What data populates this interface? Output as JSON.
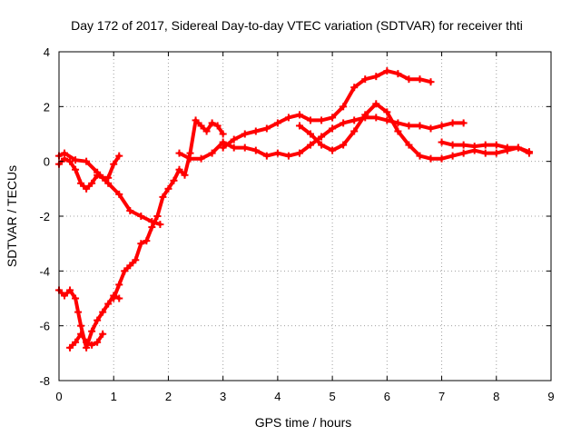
{
  "chart_data": {
    "type": "scatter",
    "title": "Day 172 of 2017, Sidereal Day-to-day VTEC variation (SDTVAR) for receiver thti",
    "xlabel": "GPS time / hours",
    "ylabel": "SDTVAR / TECUs",
    "xlim": [
      0,
      9
    ],
    "ylim": [
      -8,
      4
    ],
    "x_ticks": [
      "0",
      "1",
      "2",
      "3",
      "4",
      "5",
      "6",
      "7",
      "8",
      "9"
    ],
    "y_ticks": [
      "-8",
      "-6",
      "-4",
      "-2",
      "0",
      "2",
      "4"
    ],
    "grid": true,
    "marker": "plus",
    "color": "#ff0000",
    "series": [
      {
        "x": [
          0.0,
          0.1,
          0.2,
          0.3,
          0.4,
          0.5,
          0.6,
          0.7,
          0.8,
          0.9,
          1.0,
          1.1
        ],
        "y": [
          -0.1,
          0.1,
          0.0,
          -0.3,
          -0.8,
          -1.0,
          -0.8,
          -0.5,
          -0.6,
          -0.6,
          -0.1,
          0.2
        ]
      },
      {
        "x": [
          0.0,
          0.1,
          0.3,
          0.5,
          0.7,
          0.9,
          1.1,
          1.3,
          1.5,
          1.7,
          1.85
        ],
        "y": [
          0.2,
          0.3,
          0.05,
          0.0,
          -0.4,
          -0.8,
          -1.2,
          -1.8,
          -2.0,
          -2.2,
          -2.3
        ]
      },
      {
        "x": [
          0.0,
          0.1,
          0.2,
          0.3,
          0.35,
          0.4,
          0.5,
          0.6,
          0.7,
          0.8,
          0.9,
          1.0,
          1.1
        ],
        "y": [
          -4.7,
          -4.9,
          -4.7,
          -5.0,
          -5.5,
          -6.0,
          -6.8,
          -6.2,
          -5.8,
          -5.5,
          -5.2,
          -4.9,
          -5.0
        ]
      },
      {
        "x": [
          0.2,
          0.3,
          0.4,
          0.5,
          0.6,
          0.7,
          0.8
        ],
        "y": [
          -6.8,
          -6.6,
          -6.3,
          -6.6,
          -6.7,
          -6.6,
          -6.3
        ]
      },
      {
        "x": [
          1.0,
          1.1,
          1.2,
          1.3,
          1.4,
          1.5,
          1.6,
          1.7,
          1.8,
          1.9,
          2.0,
          2.1,
          2.2,
          2.3,
          2.4,
          2.5,
          2.6,
          2.7,
          2.8,
          2.9,
          3.0
        ],
        "y": [
          -5.0,
          -4.5,
          -4.0,
          -3.8,
          -3.6,
          -3.0,
          -2.9,
          -2.4,
          -2.0,
          -1.3,
          -1.0,
          -0.7,
          -0.3,
          -0.5,
          0.3,
          1.5,
          1.3,
          1.1,
          1.4,
          1.3,
          1.0
        ]
      },
      {
        "x": [
          2.2,
          2.4,
          2.6,
          2.8,
          3.0,
          3.2,
          3.4,
          3.6,
          3.8,
          4.0,
          4.2,
          4.4,
          4.6,
          4.8,
          5.0,
          5.2,
          5.4,
          5.6,
          5.8,
          6.0,
          6.2,
          6.4,
          6.6,
          6.8,
          7.0,
          7.2,
          7.4
        ],
        "y": [
          0.3,
          0.1,
          0.1,
          0.3,
          0.7,
          0.5,
          0.5,
          0.4,
          0.2,
          0.3,
          0.2,
          0.3,
          0.6,
          0.9,
          1.2,
          1.4,
          1.5,
          1.6,
          1.6,
          1.5,
          1.4,
          1.3,
          1.3,
          1.2,
          1.3,
          1.4,
          1.4
        ]
      },
      {
        "x": [
          3.0,
          3.2,
          3.4,
          3.6,
          3.8,
          4.0,
          4.2,
          4.4,
          4.6,
          4.8,
          5.0,
          5.2,
          5.4,
          5.6,
          5.8,
          6.0,
          6.2,
          6.4,
          6.6,
          6.8
        ],
        "y": [
          0.5,
          0.8,
          1.0,
          1.1,
          1.2,
          1.4,
          1.6,
          1.7,
          1.5,
          1.5,
          1.6,
          2.0,
          2.7,
          3.0,
          3.1,
          3.3,
          3.2,
          3.0,
          3.0,
          2.9
        ]
      },
      {
        "x": [
          4.4,
          4.6,
          4.8,
          5.0,
          5.2,
          5.4,
          5.6,
          5.8,
          6.0,
          6.2,
          6.4,
          6.6,
          6.8,
          7.0,
          7.2,
          7.4,
          7.6,
          7.8,
          8.0,
          8.2,
          8.4,
          8.6
        ],
        "y": [
          1.3,
          1.0,
          0.6,
          0.4,
          0.6,
          1.1,
          1.7,
          2.1,
          1.8,
          1.1,
          0.6,
          0.2,
          0.1,
          0.1,
          0.2,
          0.3,
          0.4,
          0.3,
          0.3,
          0.4,
          0.5,
          0.3
        ]
      },
      {
        "x": [
          7.0,
          7.2,
          7.4,
          7.6,
          7.8,
          8.0,
          8.2,
          8.4,
          8.6
        ],
        "y": [
          0.7,
          0.6,
          0.6,
          0.55,
          0.6,
          0.6,
          0.5,
          0.5,
          0.35
        ]
      }
    ]
  }
}
